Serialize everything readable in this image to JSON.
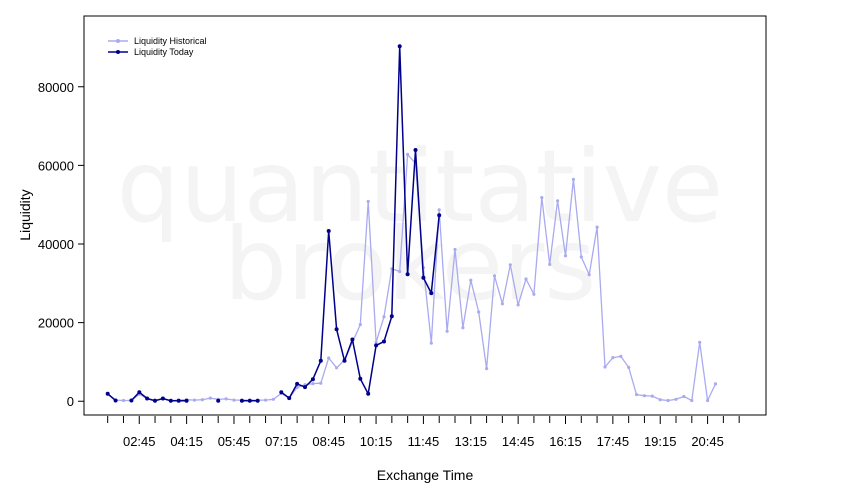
{
  "watermark": {
    "line1": "quantitative",
    "line2": "brokers"
  },
  "chart_data": {
    "type": "line",
    "xlabel": "Exchange Time",
    "ylabel": "Liquidity",
    "ylim": [
      -3500,
      98000
    ],
    "y_ticks": [
      0,
      20000,
      40000,
      60000,
      80000
    ],
    "x_ticks": [
      "02:45",
      "04:15",
      "05:45",
      "07:15",
      "08:45",
      "10:15",
      "11:45",
      "13:15",
      "14:45",
      "16:15",
      "17:45",
      "19:15",
      "20:45"
    ],
    "x_tick_positions": [
      2,
      5,
      8,
      11,
      14,
      17,
      20,
      23,
      26,
      29,
      32,
      35,
      38
    ],
    "xlim": [
      -1.5,
      41.7
    ],
    "x_step_per_slot": 0.5,
    "grid": false,
    "legend_position": "top-left",
    "colors": {
      "historical": "#aaaaf0",
      "today": "#00008b"
    },
    "series": [
      {
        "name": "Liquidity Historical",
        "values": [
          1800,
          300,
          200,
          200,
          1800,
          700,
          300,
          600,
          200,
          300,
          400,
          300,
          400,
          800,
          500,
          600,
          300,
          300,
          300,
          300,
          300,
          500,
          2000,
          800,
          3500,
          4200,
          4500,
          4600,
          11000,
          8500,
          10500,
          15000,
          19500,
          50800,
          15000,
          21500,
          33700,
          33000,
          62800,
          60500,
          34000,
          14800,
          48700,
          17800,
          38600,
          18700,
          30800,
          22700,
          8300,
          31900,
          24800,
          34700,
          24500,
          31100,
          27200,
          51800,
          34800,
          51000,
          37000,
          56400,
          36700,
          32200,
          44300,
          8700,
          11100,
          11400,
          8600,
          1700,
          1400,
          1300,
          400,
          200,
          500,
          1200,
          200,
          15000,
          200,
          4400
        ]
      },
      {
        "name": "Liquidity Today",
        "values": [
          1900,
          200,
          null,
          200,
          2300,
          700,
          100,
          700,
          100,
          100,
          100,
          null,
          null,
          null,
          100,
          null,
          null,
          100,
          100,
          100,
          null,
          null,
          2300,
          800,
          4400,
          3600,
          5600,
          10300,
          43300,
          18300,
          10300,
          15700,
          5700,
          1900,
          14200,
          15200,
          21600,
          90300,
          32300,
          63900,
          31400,
          27500,
          47300
        ]
      }
    ]
  }
}
